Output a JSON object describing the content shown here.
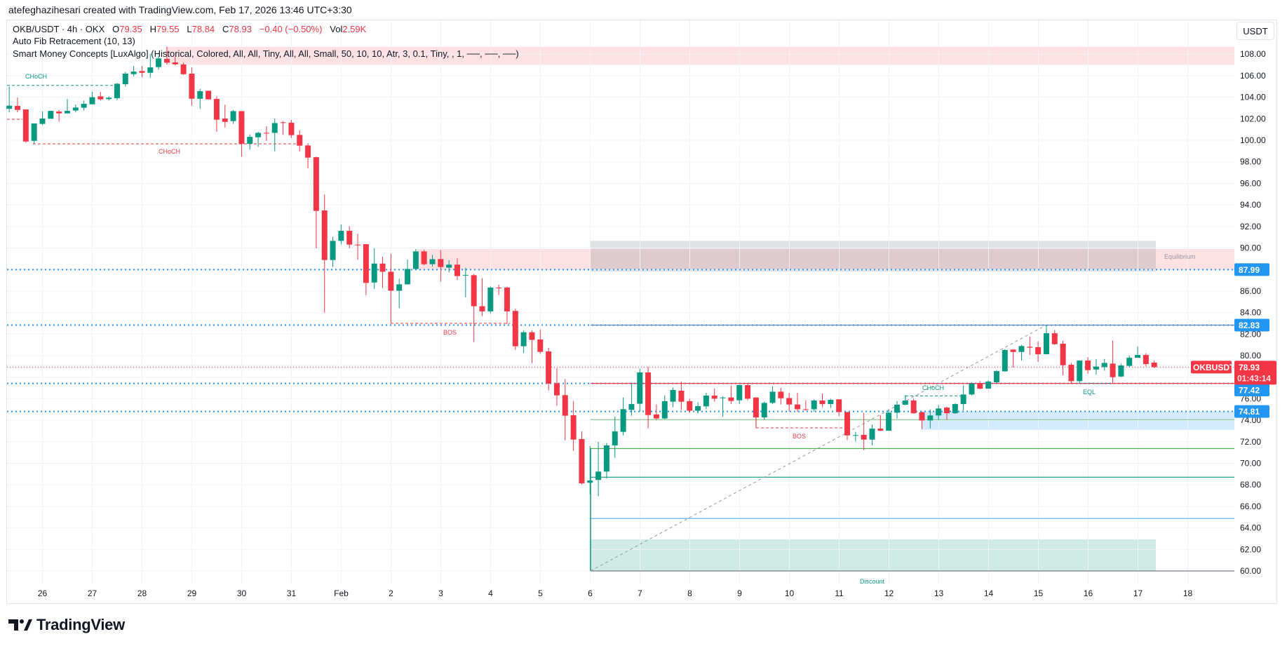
{
  "header": {
    "attribution": "atefeghazihesari created with TradingView.com, Feb 17, 2026 13:46 UTC+3:30"
  },
  "legend": {
    "symbol": "OKB/USDT · 4h · OKX",
    "o_label": "O",
    "o": "79.35",
    "h_label": "H",
    "h": "79.55",
    "l_label": "L",
    "l": "78.84",
    "c_label": "C",
    "c": "78.93",
    "change": "−0.40 (−0.50%)",
    "vol_label": "Vol",
    "vol": "2.59K",
    "indicators": [
      "Auto Fib Retracement (10, 13)",
      "Smart Money Concepts [LuxAlgo] (Historical, Colored, All, All, Tiny, All, All, Small, 50, 10, 10, Atr, 3, 0.1, Tiny, , 1, ──, ──, ──)"
    ]
  },
  "currency_button": "USDT",
  "logo": "TradingView",
  "colors": {
    "up": "#089981",
    "down": "#f23645",
    "level": "#2196f3",
    "grid": "#f0f3fa",
    "text": "#131722"
  },
  "price_axis": {
    "ticks": [
      "108.00",
      "106.00",
      "104.00",
      "102.00",
      "100.00",
      "98.00",
      "96.00",
      "94.00",
      "92.00",
      "90.00",
      "86.00",
      "84.00",
      "82.00",
      "80.00",
      "76.00",
      "74.00",
      "72.00",
      "70.00",
      "68.00",
      "66.00",
      "64.00",
      "62.00",
      "60.00"
    ]
  },
  "time_axis": {
    "labels": [
      "26",
      "27",
      "28",
      "29",
      "30",
      "31",
      "Feb",
      "2",
      "3",
      "4",
      "5",
      "6",
      "7",
      "8",
      "9",
      "10",
      "11",
      "12",
      "13",
      "14",
      "15",
      "16",
      "17",
      "18"
    ]
  },
  "badges": [
    {
      "value": "87.99",
      "price": 87.99
    },
    {
      "value": "82.83",
      "price": 82.83
    },
    {
      "value": "77.42",
      "price": 77.42
    },
    {
      "value": "74.81",
      "price": 74.81
    }
  ],
  "last_price": {
    "symbol_tag": "OKBUSDT",
    "price": "78.93",
    "countdown": "01:43:14",
    "value": 78.93
  },
  "annotations": {
    "choch_top": "CHoCH",
    "choch_red": "CHoCH",
    "bos_1": "BOS",
    "bos_2": "BOS",
    "choch_green": "CHoCH",
    "eql": "EQL",
    "equilibrium": "Equilibrium",
    "discount": "Discount"
  },
  "levels": {
    "premium_zone_top": [
      107.01,
      108.69
    ],
    "supply_zone": [
      87.95,
      89.9
    ],
    "equilibrium_zone": [
      87.8,
      90.66
    ],
    "demand_zone": [
      73.11,
      74.81
    ],
    "discount_zone": [
      60.0,
      62.93
    ],
    "fib": [
      82.83,
      77.42,
      74.05,
      71.37,
      68.71,
      64.87,
      60.0
    ],
    "choch_top": 105.1,
    "choch_red": 99.67,
    "bos_1": 83.0,
    "bos_2": 73.29,
    "choch_green": 76.26
  },
  "chart_data": {
    "type": "candlestick",
    "interval": "4h",
    "ylim": [
      60,
      108.7
    ],
    "grid": true,
    "ohlc": [
      [
        102.93,
        104.99,
        102.6,
        103.21
      ],
      [
        103.19,
        103.97,
        102.6,
        102.82
      ],
      [
        102.87,
        102.87,
        99.78,
        99.89
      ],
      [
        99.95,
        101.56,
        99.67,
        101.56
      ],
      [
        101.52,
        102.67,
        101.41,
        102.02
      ],
      [
        102.0,
        102.73,
        102.0,
        102.73
      ],
      [
        102.67,
        102.82,
        101.74,
        102.5
      ],
      [
        102.5,
        103.84,
        102.47,
        102.73
      ],
      [
        102.76,
        103.32,
        102.6,
        103.04
      ],
      [
        103.02,
        103.69,
        102.76,
        103.39
      ],
      [
        103.34,
        104.49,
        103.34,
        104.0
      ],
      [
        104.08,
        104.49,
        103.69,
        103.8
      ],
      [
        103.82,
        104.08,
        103.69,
        103.95
      ],
      [
        103.91,
        105.32,
        103.73,
        105.25
      ],
      [
        105.21,
        106.34,
        104.99,
        106.19
      ],
      [
        106.14,
        106.9,
        105.95,
        106.38
      ],
      [
        106.43,
        106.9,
        105.86,
        106.27
      ],
      [
        106.27,
        108.03,
        105.82,
        106.77
      ],
      [
        106.8,
        107.82,
        106.56,
        107.6
      ],
      [
        107.56,
        108.69,
        107.06,
        107.21
      ],
      [
        107.23,
        107.77,
        106.95,
        107.06
      ],
      [
        107.04,
        107.21,
        106.08,
        106.14
      ],
      [
        106.19,
        106.77,
        103.21,
        103.86
      ],
      [
        103.86,
        104.78,
        102.93,
        104.56
      ],
      [
        104.6,
        104.6,
        103.8,
        103.8
      ],
      [
        103.84,
        104.08,
        100.8,
        101.91
      ],
      [
        102.02,
        103.3,
        101.19,
        101.71
      ],
      [
        101.78,
        102.82,
        101.52,
        102.71
      ],
      [
        102.71,
        102.71,
        98.48,
        99.67
      ],
      [
        99.67,
        100.54,
        99.13,
        100.32
      ],
      [
        100.28,
        100.8,
        99.39,
        100.69
      ],
      [
        100.69,
        101.3,
        99.95,
        100.66
      ],
      [
        100.69,
        102.02,
        98.98,
        101.6
      ],
      [
        101.67,
        101.78,
        100.5,
        101.65
      ],
      [
        101.63,
        101.89,
        100.22,
        100.48
      ],
      [
        100.5,
        100.91,
        98.96,
        99.5
      ],
      [
        99.52,
        99.74,
        97.39,
        98.39
      ],
      [
        98.43,
        98.48,
        89.96,
        93.44
      ],
      [
        93.48,
        94.96,
        83.99,
        88.88
      ],
      [
        88.88,
        91.03,
        88.23,
        90.66
      ],
      [
        90.66,
        92.18,
        90.33,
        91.59
      ],
      [
        91.59,
        92.03,
        89.96,
        90.31
      ],
      [
        90.31,
        91.31,
        88.92,
        90.28
      ],
      [
        90.35,
        90.35,
        85.62,
        86.75
      ],
      [
        86.79,
        89.96,
        86.21,
        88.55
      ],
      [
        88.55,
        89.18,
        86.27,
        87.79
      ],
      [
        87.79,
        89.46,
        82.95,
        86.03
      ],
      [
        86.03,
        87.14,
        84.4,
        86.62
      ],
      [
        86.62,
        88.92,
        86.6,
        88.05
      ],
      [
        88.05,
        89.9,
        88.0,
        89.68
      ],
      [
        89.68,
        89.83,
        88.38,
        88.49
      ],
      [
        88.49,
        89.35,
        88.27,
        88.96
      ],
      [
        88.97,
        89.8,
        86.87,
        88.23
      ],
      [
        88.17,
        88.86,
        87.73,
        88.45
      ],
      [
        88.45,
        89.04,
        87.02,
        87.39
      ],
      [
        87.45,
        88.17,
        85.41,
        87.5
      ],
      [
        87.47,
        87.58,
        81.26,
        84.59
      ],
      [
        84.59,
        87.19,
        83.67,
        84.11
      ],
      [
        84.11,
        86.43,
        83.93,
        86.32
      ],
      [
        86.32,
        86.58,
        85.63,
        86.3
      ],
      [
        86.32,
        86.4,
        82.96,
        84.11
      ],
      [
        84.15,
        84.37,
        80.54,
        80.87
      ],
      [
        80.87,
        82.35,
        80.24,
        82.17
      ],
      [
        82.17,
        82.35,
        79.31,
        81.46
      ],
      [
        81.5,
        82.41,
        80.17,
        80.35
      ],
      [
        80.39,
        80.72,
        76.77,
        77.4
      ],
      [
        77.44,
        78.83,
        75.35,
        76.31
      ],
      [
        76.33,
        77.81,
        72.14,
        74.42
      ],
      [
        74.46,
        75.79,
        71.16,
        72.2
      ],
      [
        72.25,
        72.96,
        68.03,
        68.14
      ],
      [
        68.19,
        71.6,
        67.1,
        68.4
      ],
      [
        68.45,
        71.99,
        66.95,
        69.23
      ],
      [
        69.23,
        71.88,
        68.58,
        71.66
      ],
      [
        71.66,
        74.33,
        70.51,
        72.96
      ],
      [
        72.92,
        76.11,
        72.6,
        75.03
      ],
      [
        74.96,
        77.46,
        74.42,
        75.5
      ],
      [
        75.53,
        78.79,
        74.81,
        78.44
      ],
      [
        78.44,
        78.98,
        73.25,
        74.48
      ],
      [
        74.53,
        75.46,
        74.0,
        74.16
      ],
      [
        74.16,
        76.33,
        74.1,
        75.77
      ],
      [
        75.72,
        77.03,
        75.2,
        76.81
      ],
      [
        76.74,
        77.59,
        74.96,
        75.72
      ],
      [
        75.77,
        76.0,
        74.7,
        74.88
      ],
      [
        74.88,
        75.68,
        74.64,
        75.31
      ],
      [
        75.29,
        76.55,
        75.03,
        76.29
      ],
      [
        76.29,
        76.94,
        75.72,
        76.0
      ],
      [
        76.05,
        76.22,
        74.31,
        76.11
      ],
      [
        76.11,
        77.2,
        75.5,
        75.79
      ],
      [
        75.85,
        77.3,
        75.5,
        77.27
      ],
      [
        77.26,
        77.41,
        75.85,
        76.0
      ],
      [
        76.11,
        76.11,
        73.29,
        74.26
      ],
      [
        74.26,
        75.72,
        74.05,
        75.61
      ],
      [
        75.61,
        77.15,
        75.5,
        76.65
      ],
      [
        76.65,
        77.02,
        75.46,
        76.04
      ],
      [
        76.06,
        76.54,
        74.81,
        75.46
      ],
      [
        75.46,
        76.54,
        74.76,
        75.02
      ],
      [
        75.02,
        75.85,
        74.9,
        75.0
      ],
      [
        75.02,
        75.94,
        74.8,
        75.83
      ],
      [
        75.83,
        76.48,
        75.2,
        75.5
      ],
      [
        75.5,
        76.0,
        75.13,
        75.89
      ],
      [
        75.94,
        75.94,
        74.37,
        74.76
      ],
      [
        74.76,
        74.8,
        72.16,
        72.59
      ],
      [
        72.59,
        72.92,
        72.03,
        72.62
      ],
      [
        72.64,
        74.7,
        71.22,
        72.2
      ],
      [
        72.2,
        73.61,
        71.66,
        73.22
      ],
      [
        73.22,
        74.48,
        73.0,
        73.03
      ],
      [
        73.03,
        75.02,
        73.0,
        74.7
      ],
      [
        74.7,
        75.78,
        74.15,
        75.44
      ],
      [
        75.44,
        76.33,
        75.4,
        75.83
      ],
      [
        75.83,
        76.0,
        74.59,
        74.65
      ],
      [
        74.74,
        74.8,
        73.18,
        73.98
      ],
      [
        73.98,
        75.02,
        73.24,
        74.44
      ],
      [
        74.44,
        75.41,
        74.0,
        75.09
      ],
      [
        75.17,
        75.25,
        74.04,
        74.65
      ],
      [
        74.65,
        75.56,
        74.6,
        75.5
      ],
      [
        75.5,
        77.24,
        74.92,
        76.39
      ],
      [
        76.39,
        77.52,
        76.3,
        77.41
      ],
      [
        77.41,
        77.63,
        76.88,
        76.93
      ],
      [
        76.93,
        77.7,
        76.93,
        77.59
      ],
      [
        77.52,
        78.66,
        77.4,
        78.56
      ],
      [
        78.54,
        80.6,
        78.5,
        80.52
      ],
      [
        80.56,
        80.6,
        78.87,
        80.34
      ],
      [
        80.34,
        81.0,
        79.54,
        80.89
      ],
      [
        80.82,
        81.76,
        80.06,
        80.74
      ],
      [
        80.78,
        81.32,
        79.41,
        80.13
      ],
      [
        80.13,
        82.84,
        80.1,
        82.08
      ],
      [
        82.08,
        82.37,
        81.0,
        81.06
      ],
      [
        81.11,
        81.39,
        78.17,
        79.11
      ],
      [
        79.15,
        79.32,
        77.37,
        77.63
      ],
      [
        77.63,
        79.54,
        77.4,
        79.54
      ],
      [
        79.54,
        79.87,
        78.32,
        78.65
      ],
      [
        78.71,
        79.69,
        78.24,
        78.98
      ],
      [
        78.93,
        79.69,
        78.6,
        79.32
      ],
      [
        79.26,
        81.39,
        77.46,
        78.0
      ],
      [
        78.06,
        79.25,
        78.0,
        79.09
      ],
      [
        79.04,
        80.0,
        78.9,
        79.8
      ],
      [
        79.8,
        80.84,
        79.8,
        80.06
      ],
      [
        80.06,
        80.24,
        79.0,
        79.22
      ],
      [
        79.35,
        79.55,
        78.84,
        78.93
      ]
    ]
  }
}
